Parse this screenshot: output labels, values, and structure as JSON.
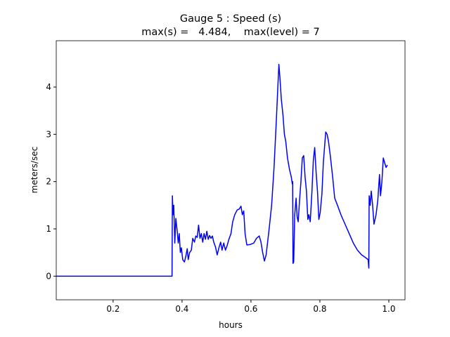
{
  "chart_data": {
    "type": "line",
    "title": "Gauge 5 : Speed (s)",
    "subtitle": "max(s) =   4.484,    max(level) = 7",
    "x_label": "hours",
    "y_label": "meters/sec",
    "xlim": [
      0.035,
      1.047
    ],
    "ylim": [
      -0.5,
      4.98
    ],
    "xticks": [
      0.2,
      0.4,
      0.6,
      0.8,
      {
        "value": 1,
        "label": "1.0"
      }
    ],
    "yticks": [
      0,
      1,
      2,
      3,
      4
    ],
    "x": [
      0.035,
      0.371,
      0.372,
      0.374,
      0.376,
      0.379,
      0.382,
      0.386,
      0.389,
      0.392,
      0.395,
      0.398,
      0.402,
      0.407,
      0.411,
      0.415,
      0.418,
      0.422,
      0.427,
      0.431,
      0.436,
      0.44,
      0.444,
      0.448,
      0.452,
      0.456,
      0.46,
      0.464,
      0.468,
      0.472,
      0.476,
      0.48,
      0.484,
      0.488,
      0.492,
      0.497,
      0.502,
      0.507,
      0.512,
      0.516,
      0.521,
      0.526,
      0.531,
      0.536,
      0.542,
      0.547,
      0.553,
      0.56,
      0.566,
      0.571,
      0.575,
      0.579,
      0.583,
      0.588,
      0.598,
      0.608,
      0.616,
      0.624,
      0.629,
      0.634,
      0.639,
      0.644,
      0.652,
      0.66,
      0.667,
      0.673,
      0.678,
      0.681,
      0.684,
      0.688,
      0.693,
      0.697,
      0.701,
      0.706,
      0.712,
      0.717,
      0.72,
      0.721,
      0.722,
      0.724,
      0.727,
      0.731,
      0.734,
      0.737,
      0.741,
      0.745,
      0.749,
      0.753,
      0.757,
      0.761,
      0.765,
      0.768,
      0.772,
      0.777,
      0.781,
      0.785,
      0.789,
      0.793,
      0.797,
      0.801,
      0.806,
      0.81,
      0.817,
      0.821,
      0.825,
      0.831,
      0.837,
      0.843,
      0.851,
      0.861,
      0.873,
      0.885,
      0.897,
      0.909,
      0.921,
      0.931,
      0.94,
      0.942,
      0.943,
      0.946,
      0.949,
      0.953,
      0.957,
      0.963,
      0.968,
      0.973,
      0.976,
      0.98,
      0.984,
      0.988,
      0.992,
      0.996
    ],
    "series": [
      {
        "name": "s",
        "color": "#0000ff",
        "values": [
          0,
          0,
          1.7,
          1.3,
          1.5,
          0.7,
          1.22,
          0.95,
          0.7,
          0.9,
          0.5,
          0.6,
          0.35,
          0.3,
          0.42,
          0.58,
          0.35,
          0.5,
          0.55,
          0.8,
          0.72,
          0.85,
          0.82,
          1.08,
          0.8,
          0.9,
          0.72,
          0.9,
          0.78,
          0.95,
          0.78,
          0.86,
          0.8,
          0.85,
          0.72,
          0.62,
          0.45,
          0.6,
          0.72,
          0.55,
          0.7,
          0.55,
          0.65,
          0.78,
          0.9,
          1.15,
          1.3,
          1.4,
          1.42,
          1.48,
          1.3,
          1.38,
          0.9,
          0.66,
          0.67,
          0.7,
          0.8,
          0.85,
          0.72,
          0.5,
          0.32,
          0.45,
          0.95,
          1.5,
          2.3,
          3.2,
          4.0,
          4.48,
          4.2,
          3.75,
          3.4,
          3.0,
          2.85,
          2.5,
          2.25,
          2.1,
          1.95,
          2.0,
          0.27,
          0.3,
          1.3,
          1.65,
          1.25,
          1.15,
          1.6,
          2.0,
          2.5,
          2.55,
          2.1,
          1.8,
          1.2,
          1.3,
          1.15,
          1.8,
          2.45,
          2.72,
          2.2,
          1.8,
          1.2,
          1.35,
          1.75,
          2.4,
          3.05,
          3.0,
          2.85,
          2.5,
          2.1,
          1.65,
          1.5,
          1.3,
          1.1,
          0.9,
          0.7,
          0.55,
          0.45,
          0.4,
          0.35,
          0.17,
          1.7,
          1.5,
          1.8,
          1.5,
          1.1,
          1.3,
          1.6,
          2.15,
          1.7,
          2.0,
          2.5,
          2.4,
          2.3,
          2.35
        ]
      }
    ]
  }
}
